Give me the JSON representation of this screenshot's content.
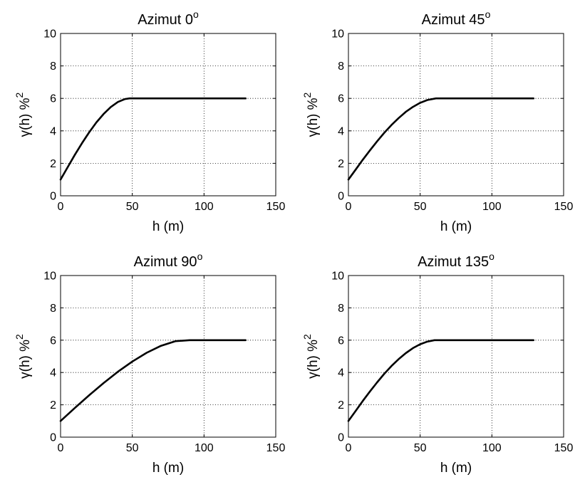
{
  "chart_data": [
    {
      "type": "line",
      "title": "Azimut 0",
      "title_sup": "o",
      "xlabel": "h (m)",
      "ylabel": "γ(h) %",
      "ylabel_sup": "2",
      "xlim": [
        0,
        150
      ],
      "ylim": [
        0,
        10
      ],
      "xticks": [
        "0",
        "50",
        "100",
        "150"
      ],
      "yticks": [
        "0",
        "2",
        "4",
        "6",
        "8",
        "10"
      ],
      "grid": true,
      "model": {
        "nugget": 1,
        "sill": 6,
        "range": 48
      },
      "x": [
        0,
        5,
        10,
        15,
        20,
        25,
        30,
        35,
        40,
        45,
        48,
        60,
        80,
        100,
        120,
        129
      ],
      "values": [
        1.0,
        1.77,
        2.53,
        3.25,
        3.92,
        4.52,
        5.04,
        5.47,
        5.78,
        5.96,
        6.0,
        6.0,
        6.0,
        6.0,
        6.0,
        6.0
      ]
    },
    {
      "type": "line",
      "title": "Azimut 45",
      "title_sup": "o",
      "xlabel": "h (m)",
      "ylabel": "γ(h) %",
      "ylabel_sup": "2",
      "xlim": [
        0,
        150
      ],
      "ylim": [
        0,
        10
      ],
      "xticks": [
        "0",
        "50",
        "100",
        "150"
      ],
      "yticks": [
        "0",
        "2",
        "4",
        "6",
        "8",
        "10"
      ],
      "grid": true,
      "model": {
        "nugget": 1,
        "sill": 6,
        "range": 61
      },
      "x": [
        0,
        5,
        10,
        15,
        20,
        25,
        30,
        35,
        40,
        45,
        50,
        55,
        61,
        80,
        100,
        120,
        129
      ],
      "values": [
        1.0,
        1.61,
        2.22,
        2.8,
        3.36,
        3.88,
        4.36,
        4.79,
        5.17,
        5.48,
        5.73,
        5.9,
        6.0,
        6.0,
        6.0,
        6.0,
        6.0
      ]
    },
    {
      "type": "line",
      "title": "Azimut 90",
      "title_sup": "o",
      "xlabel": "h (m)",
      "ylabel": "γ(h) %",
      "ylabel_sup": "2",
      "xlim": [
        0,
        150
      ],
      "ylim": [
        0,
        10
      ],
      "xticks": [
        "0",
        "50",
        "100",
        "150"
      ],
      "yticks": [
        "0",
        "2",
        "4",
        "6",
        "8",
        "10"
      ],
      "grid": true,
      "model": {
        "nugget": 1,
        "sill": 6,
        "range": 93
      },
      "x": [
        0,
        10,
        20,
        30,
        40,
        50,
        60,
        70,
        80,
        90,
        93,
        100,
        110,
        120,
        129
      ],
      "values": [
        1.0,
        1.81,
        2.6,
        3.35,
        4.05,
        4.68,
        5.22,
        5.65,
        5.94,
        6.0,
        6.0,
        6.0,
        6.0,
        6.0,
        6.0
      ]
    },
    {
      "type": "line",
      "title": "Azimut 135",
      "title_sup": "o",
      "xlabel": "h (m)",
      "ylabel": "γ(h) %",
      "ylabel_sup": "2",
      "xlim": [
        0,
        150
      ],
      "ylim": [
        0,
        10
      ],
      "xticks": [
        "0",
        "50",
        "100",
        "150"
      ],
      "yticks": [
        "0",
        "2",
        "4",
        "6",
        "8",
        "10"
      ],
      "grid": true,
      "model": {
        "nugget": 1,
        "sill": 6,
        "range": 60
      },
      "x": [
        0,
        5,
        10,
        15,
        20,
        25,
        30,
        35,
        40,
        45,
        50,
        55,
        60,
        80,
        100,
        120,
        129
      ],
      "values": [
        1.0,
        1.62,
        2.24,
        2.83,
        3.39,
        3.92,
        4.4,
        4.83,
        5.2,
        5.51,
        5.75,
        5.91,
        6.0,
        6.0,
        6.0,
        6.0,
        6.0
      ]
    }
  ]
}
